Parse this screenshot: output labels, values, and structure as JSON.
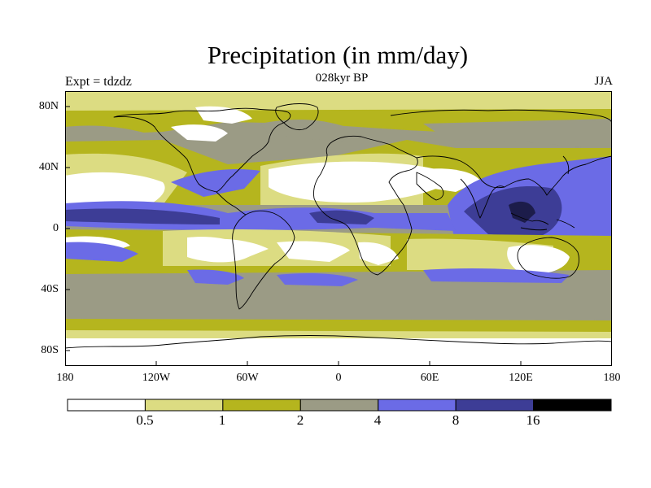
{
  "title": "Precipitation (in mm/day)",
  "experiment": "Expt = tdzdz",
  "period": "028kyr BP",
  "season": "JJA",
  "lat_labels": [
    "80N",
    "40N",
    "0",
    "40S",
    "80S"
  ],
  "lon_labels": [
    "180",
    "120W",
    "60W",
    "0",
    "60E",
    "120E",
    "180"
  ],
  "colorbar": {
    "levels": [
      "0.5",
      "1",
      "2",
      "4",
      "8",
      "16"
    ],
    "colors": [
      "#ffffff",
      "#dcdc82",
      "#b5b51e",
      "#9b9b85",
      "#6b6be6",
      "#3d3d96",
      "#000000"
    ]
  },
  "chart_data": {
    "type": "heatmap",
    "title": "Precipitation (in mm/day)",
    "variable": "Precipitation",
    "units": "mm/day",
    "season": "JJA",
    "period": "028kyr BP",
    "experiment": "tdzdz",
    "contour_levels": [
      0.5,
      1,
      2,
      4,
      8,
      16
    ],
    "lon_range": [
      -180,
      180
    ],
    "lat_range": [
      -90,
      90
    ]
  }
}
